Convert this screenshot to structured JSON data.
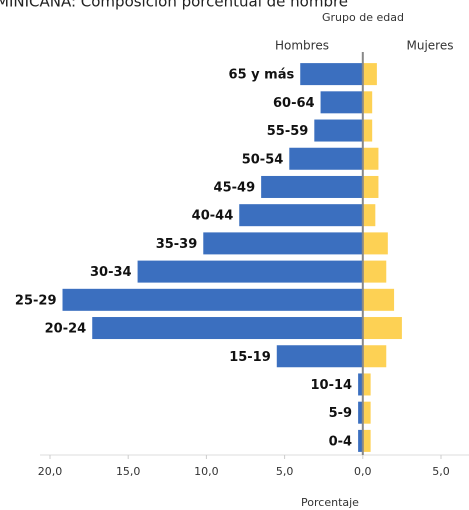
{
  "chart_data": {
    "type": "pyramid",
    "title": "MINICANA: Composición porcentual de hombre",
    "category_axis_label": "Grupo de edad",
    "x_label": "Porcentaje",
    "categories": [
      "65 y más",
      "60-64",
      "55-59",
      "50-54",
      "45-49",
      "40-44",
      "35-39",
      "30-34",
      "25-29",
      "20-24",
      "15-19",
      "10-14",
      "5-9",
      "0-4"
    ],
    "series": [
      {
        "name": "Hombres",
        "color": "#3b6fbf",
        "values": [
          -4.0,
          -2.7,
          -3.1,
          -4.7,
          -6.5,
          -7.9,
          -10.2,
          -14.4,
          -19.2,
          -17.3,
          -5.5,
          -0.3,
          -0.3,
          -0.3
        ]
      },
      {
        "name": "Mujeres",
        "color": "#fdd154",
        "values": [
          0.9,
          0.6,
          0.6,
          1.0,
          1.0,
          0.8,
          1.6,
          1.5,
          2.0,
          2.5,
          1.5,
          0.5,
          0.5,
          0.5
        ]
      }
    ],
    "xlim": [
      -20,
      5
    ],
    "xticks": [
      {
        "value": -20,
        "label": "20,0"
      },
      {
        "value": -15,
        "label": "15,0"
      },
      {
        "value": -10,
        "label": "10,0"
      },
      {
        "value": -5,
        "label": "5,0"
      },
      {
        "value": 0,
        "label": "0,0"
      },
      {
        "value": 5,
        "label": "5,0"
      }
    ]
  }
}
